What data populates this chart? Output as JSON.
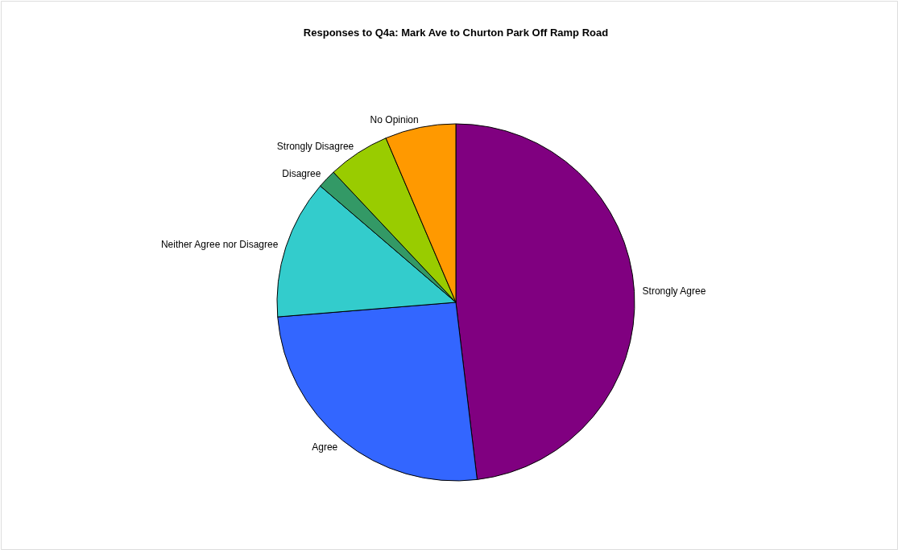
{
  "chart_data": {
    "type": "pie",
    "title": "Responses to Q4a: Mark Ave to Churton Park Off Ramp Road",
    "categories": [
      "Strongly Agree",
      "Agree",
      "Neither Agree nor Disagree",
      "Disagree",
      "Strongly Disagree",
      "No Opinion"
    ],
    "values": [
      48.1,
      25.6,
      12.6,
      1.7,
      5.6,
      6.4
    ],
    "colors": [
      "#800080",
      "#3366ff",
      "#33cccc",
      "#339966",
      "#99cc00",
      "#ff9900"
    ]
  }
}
